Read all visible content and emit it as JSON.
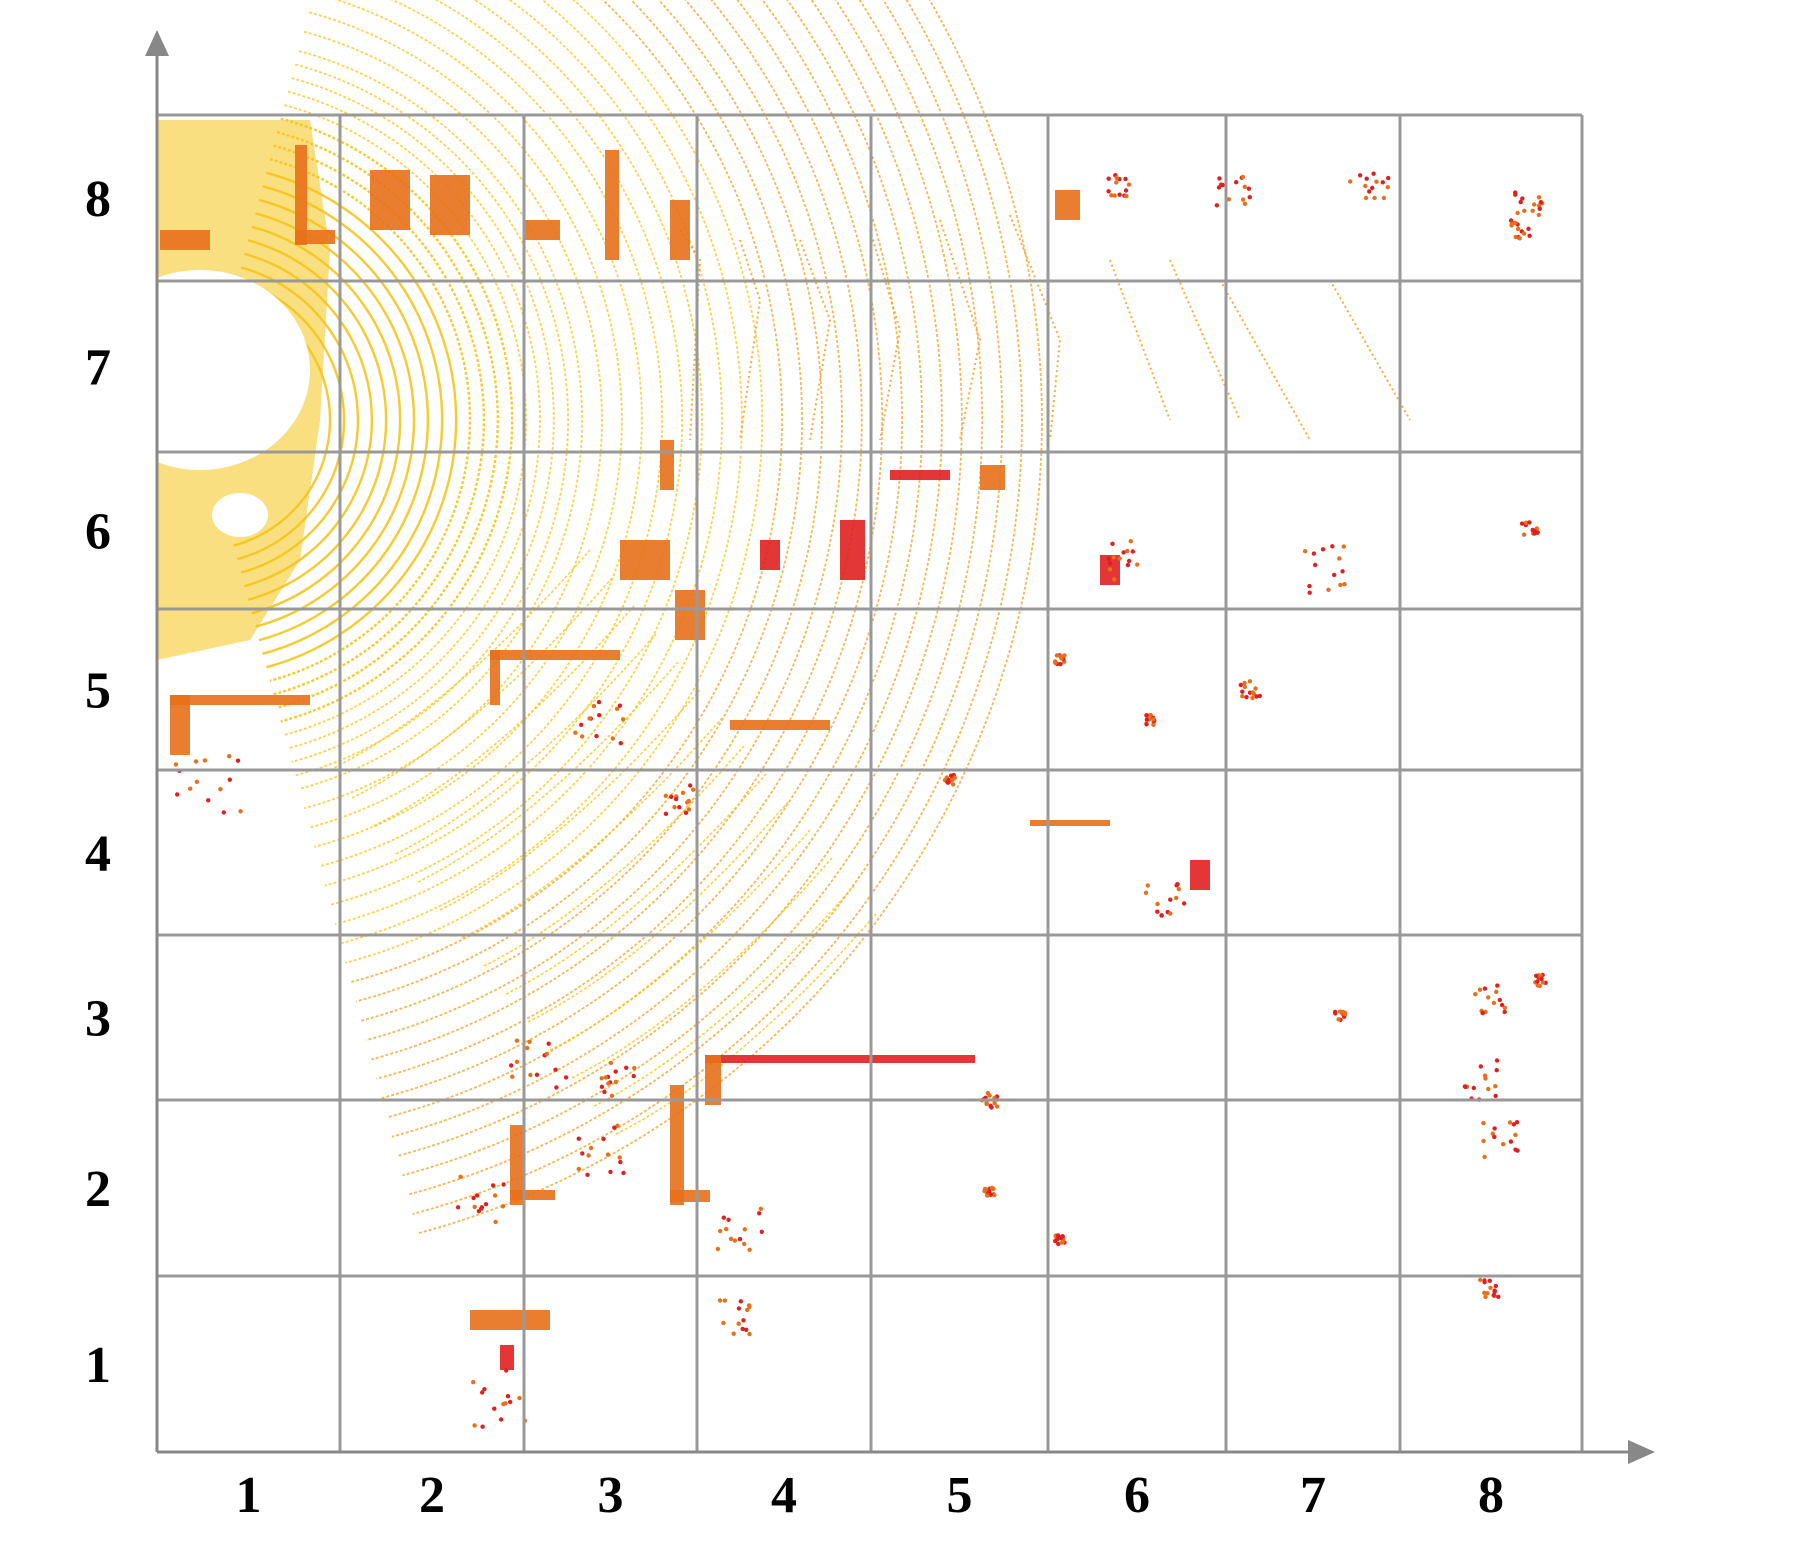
{
  "figure": {
    "x_ticks": [
      "1",
      "2",
      "3",
      "4",
      "5",
      "6",
      "7",
      "8"
    ],
    "y_ticks": [
      "1",
      "2",
      "3",
      "4",
      "5",
      "6",
      "7",
      "8"
    ],
    "grid": true,
    "arrows": [
      "x-axis",
      "y-axis"
    ]
  },
  "colors": {
    "grid": "#999999",
    "axis": "#888888",
    "background": "#ffffff",
    "points_near": "#F5C518",
    "points_mid": "#F0A020",
    "points_far_orange": "#E8701A",
    "points_far_red": "#E02020"
  },
  "content": {
    "description_type": "lidar point cloud, top-down view, color encodes intensity/height"
  }
}
